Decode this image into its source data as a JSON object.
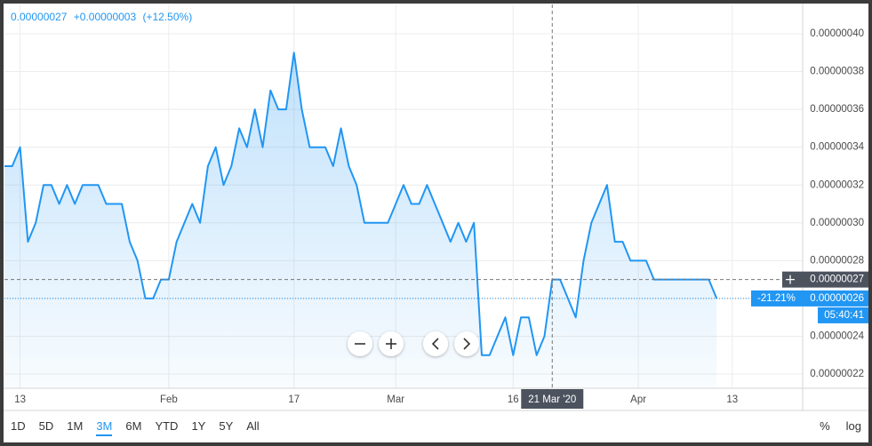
{
  "chart_data": {
    "type": "line",
    "header": {
      "price": "0.00000027",
      "change": "+0.00000003",
      "change_pct": "(+12.50%)"
    },
    "x": [
      "2020-01-11",
      "2020-01-12",
      "2020-01-13",
      "2020-01-14",
      "2020-01-15",
      "2020-01-16",
      "2020-01-17",
      "2020-01-18",
      "2020-01-19",
      "2020-01-20",
      "2020-01-21",
      "2020-01-22",
      "2020-01-23",
      "2020-01-24",
      "2020-01-25",
      "2020-01-26",
      "2020-01-27",
      "2020-01-28",
      "2020-01-29",
      "2020-01-30",
      "2020-01-31",
      "2020-02-01",
      "2020-02-02",
      "2020-02-03",
      "2020-02-04",
      "2020-02-05",
      "2020-02-06",
      "2020-02-07",
      "2020-02-08",
      "2020-02-09",
      "2020-02-10",
      "2020-02-11",
      "2020-02-12",
      "2020-02-13",
      "2020-02-14",
      "2020-02-15",
      "2020-02-16",
      "2020-02-17",
      "2020-02-18",
      "2020-02-19",
      "2020-02-20",
      "2020-02-21",
      "2020-02-22",
      "2020-02-23",
      "2020-02-24",
      "2020-02-25",
      "2020-02-26",
      "2020-02-27",
      "2020-02-28",
      "2020-02-29",
      "2020-03-01",
      "2020-03-02",
      "2020-03-03",
      "2020-03-04",
      "2020-03-05",
      "2020-03-06",
      "2020-03-07",
      "2020-03-08",
      "2020-03-09",
      "2020-03-10",
      "2020-03-11",
      "2020-03-12",
      "2020-03-13",
      "2020-03-14",
      "2020-03-15",
      "2020-03-16",
      "2020-03-17",
      "2020-03-18",
      "2020-03-19",
      "2020-03-20",
      "2020-03-21",
      "2020-03-22",
      "2020-03-23",
      "2020-03-24",
      "2020-03-25",
      "2020-03-26",
      "2020-03-27",
      "2020-03-28",
      "2020-03-29",
      "2020-03-30",
      "2020-03-31",
      "2020-04-01",
      "2020-04-02",
      "2020-04-03",
      "2020-04-04",
      "2020-04-05",
      "2020-04-06",
      "2020-04-07",
      "2020-04-08",
      "2020-04-09",
      "2020-04-10",
      "2020-04-11"
    ],
    "series": [
      {
        "color": "#2196f3",
        "values": [
          3.3e-07,
          3.3e-07,
          3.4e-07,
          2.9e-07,
          3e-07,
          3.2e-07,
          3.2e-07,
          3.1e-07,
          3.2e-07,
          3.1e-07,
          3.2e-07,
          3.2e-07,
          3.2e-07,
          3.1e-07,
          3.1e-07,
          3.1e-07,
          2.9e-07,
          2.8e-07,
          2.6e-07,
          2.6e-07,
          2.7e-07,
          2.7e-07,
          2.9e-07,
          3e-07,
          3.1e-07,
          3e-07,
          3.3e-07,
          3.4e-07,
          3.2e-07,
          3.3e-07,
          3.5e-07,
          3.4e-07,
          3.6e-07,
          3.4e-07,
          3.7e-07,
          3.6e-07,
          3.6e-07,
          3.9e-07,
          3.6e-07,
          3.4e-07,
          3.4e-07,
          3.4e-07,
          3.3e-07,
          3.5e-07,
          3.3e-07,
          3.2e-07,
          3e-07,
          3e-07,
          3e-07,
          3e-07,
          3.1e-07,
          3.2e-07,
          3.1e-07,
          3.1e-07,
          3.2e-07,
          3.1e-07,
          3e-07,
          2.9e-07,
          3e-07,
          2.9e-07,
          3e-07,
          2.3e-07,
          2.3e-07,
          2.4e-07,
          2.5e-07,
          2.3e-07,
          2.5e-07,
          2.5e-07,
          2.3e-07,
          2.4e-07,
          2.7e-07,
          2.7e-07,
          2.6e-07,
          2.5e-07,
          2.8e-07,
          3e-07,
          3.1e-07,
          3.2e-07,
          2.9e-07,
          2.9e-07,
          2.8e-07,
          2.8e-07,
          2.8e-07,
          2.7e-07,
          2.7e-07,
          2.7e-07,
          2.7e-07,
          2.7e-07,
          2.7e-07,
          2.7e-07,
          2.7e-07,
          2.6e-07
        ]
      }
    ],
    "xlim": [
      "2020-01-11",
      "2020-04-22"
    ],
    "xticks": [
      {
        "value": "2020-01-13",
        "label": "13"
      },
      {
        "value": "2020-02-01",
        "label": "Feb"
      },
      {
        "value": "2020-02-17",
        "label": "17"
      },
      {
        "value": "2020-03-01",
        "label": "Mar"
      },
      {
        "value": "2020-03-16",
        "label": "16"
      },
      {
        "value": "2020-04-01",
        "label": "Apr"
      },
      {
        "value": "2020-04-13",
        "label": "13"
      }
    ],
    "ylim": [
      2.125e-07,
      4.155e-07
    ],
    "yticks": [
      {
        "value": 2.2e-07,
        "label": "0.00000022"
      },
      {
        "value": 2.4e-07,
        "label": "0.00000024"
      },
      {
        "value": 2.6e-07,
        "label": "0.00000026"
      },
      {
        "value": 2.8e-07,
        "label": "0.00000028"
      },
      {
        "value": 3e-07,
        "label": "0.00000030"
      },
      {
        "value": 3.2e-07,
        "label": "0.00000032"
      },
      {
        "value": 3.4e-07,
        "label": "0.00000034"
      },
      {
        "value": 3.6e-07,
        "label": "0.00000036"
      },
      {
        "value": 3.8e-07,
        "label": "0.00000038"
      },
      {
        "value": 4e-07,
        "label": "0.00000040"
      }
    ],
    "grid": true,
    "crosshair": {
      "x": "2020-03-21",
      "x_label": "21 Mar '20",
      "y": 2.7e-07,
      "y_label": "0.00000027"
    },
    "last_price": {
      "value": 2.6e-07,
      "label": "0.00000026",
      "change": "-21.21%",
      "countdown": "05:40:41"
    },
    "ranges": [
      "1D",
      "5D",
      "1M",
      "3M",
      "6M",
      "YTD",
      "1Y",
      "5Y",
      "All"
    ],
    "active_range": 3,
    "scale_buttons": [
      "%",
      "log"
    ]
  }
}
